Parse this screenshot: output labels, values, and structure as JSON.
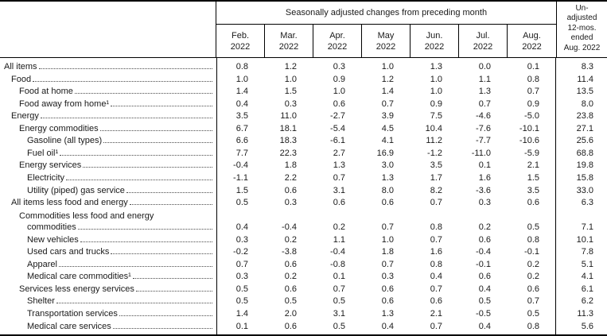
{
  "table": {
    "header": {
      "spanner": "Seasonally adjusted changes from preceding month",
      "months": [
        {
          "month": "Feb.",
          "year": "2022"
        },
        {
          "month": "Mar.",
          "year": "2022"
        },
        {
          "month": "Apr.",
          "year": "2022"
        },
        {
          "month": "May",
          "year": "2022"
        },
        {
          "month": "Jun.",
          "year": "2022"
        },
        {
          "month": "Jul.",
          "year": "2022"
        },
        {
          "month": "Aug.",
          "year": "2022"
        }
      ],
      "unadjusted_lines": [
        "Un-",
        "adjusted",
        "12-mos.",
        "ended",
        "Aug. 2022"
      ]
    },
    "rows": [
      {
        "label": "All items",
        "indent": 0,
        "values": [
          "0.8",
          "1.2",
          "0.3",
          "1.0",
          "1.3",
          "0.0",
          "0.1",
          "8.3"
        ]
      },
      {
        "label": "Food",
        "indent": 1,
        "values": [
          "1.0",
          "1.0",
          "0.9",
          "1.2",
          "1.0",
          "1.1",
          "0.8",
          "11.4"
        ]
      },
      {
        "label": "Food at home",
        "indent": 2,
        "values": [
          "1.4",
          "1.5",
          "1.0",
          "1.4",
          "1.0",
          "1.3",
          "0.7",
          "13.5"
        ]
      },
      {
        "label": "Food away from home¹",
        "indent": 2,
        "values": [
          "0.4",
          "0.3",
          "0.6",
          "0.7",
          "0.9",
          "0.7",
          "0.9",
          "8.0"
        ]
      },
      {
        "label": "Energy",
        "indent": 1,
        "values": [
          "3.5",
          "11.0",
          "-2.7",
          "3.9",
          "7.5",
          "-4.6",
          "-5.0",
          "23.8"
        ]
      },
      {
        "label": "Energy commodities",
        "indent": 2,
        "values": [
          "6.7",
          "18.1",
          "-5.4",
          "4.5",
          "10.4",
          "-7.6",
          "-10.1",
          "27.1"
        ]
      },
      {
        "label": "Gasoline (all types)",
        "indent": 3,
        "values": [
          "6.6",
          "18.3",
          "-6.1",
          "4.1",
          "11.2",
          "-7.7",
          "-10.6",
          "25.6"
        ]
      },
      {
        "label": "Fuel oil¹",
        "indent": 3,
        "values": [
          "7.7",
          "22.3",
          "2.7",
          "16.9",
          "-1.2",
          "-11.0",
          "-5.9",
          "68.8"
        ]
      },
      {
        "label": "Energy services",
        "indent": 2,
        "values": [
          "-0.4",
          "1.8",
          "1.3",
          "3.0",
          "3.5",
          "0.1",
          "2.1",
          "19.8"
        ]
      },
      {
        "label": "Electricity",
        "indent": 3,
        "values": [
          "-1.1",
          "2.2",
          "0.7",
          "1.3",
          "1.7",
          "1.6",
          "1.5",
          "15.8"
        ]
      },
      {
        "label": "Utility (piped) gas service",
        "indent": 3,
        "values": [
          "1.5",
          "0.6",
          "3.1",
          "8.0",
          "8.2",
          "-3.6",
          "3.5",
          "33.0"
        ]
      },
      {
        "label": "All items less food and energy",
        "indent": 1,
        "values": [
          "0.5",
          "0.3",
          "0.6",
          "0.6",
          "0.7",
          "0.3",
          "0.6",
          "6.3"
        ]
      },
      {
        "label": "Commodities less food and energy",
        "label2": "commodities",
        "indent": 2,
        "values": [
          "0.4",
          "-0.4",
          "0.2",
          "0.7",
          "0.8",
          "0.2",
          "0.5",
          "7.1"
        ]
      },
      {
        "label": "New vehicles",
        "indent": 3,
        "values": [
          "0.3",
          "0.2",
          "1.1",
          "1.0",
          "0.7",
          "0.6",
          "0.8",
          "10.1"
        ]
      },
      {
        "label": "Used cars and trucks",
        "indent": 3,
        "values": [
          "-0.2",
          "-3.8",
          "-0.4",
          "1.8",
          "1.6",
          "-0.4",
          "-0.1",
          "7.8"
        ]
      },
      {
        "label": "Apparel",
        "indent": 3,
        "values": [
          "0.7",
          "0.6",
          "-0.8",
          "0.7",
          "0.8",
          "-0.1",
          "0.2",
          "5.1"
        ]
      },
      {
        "label": "Medical care commodities¹",
        "indent": 3,
        "values": [
          "0.3",
          "0.2",
          "0.1",
          "0.3",
          "0.4",
          "0.6",
          "0.2",
          "4.1"
        ]
      },
      {
        "label": "Services less energy services",
        "indent": 2,
        "values": [
          "0.5",
          "0.6",
          "0.7",
          "0.6",
          "0.7",
          "0.4",
          "0.6",
          "6.1"
        ]
      },
      {
        "label": "Shelter",
        "indent": 3,
        "values": [
          "0.5",
          "0.5",
          "0.5",
          "0.6",
          "0.6",
          "0.5",
          "0.7",
          "6.2"
        ]
      },
      {
        "label": "Transportation services",
        "indent": 3,
        "values": [
          "1.4",
          "2.0",
          "3.1",
          "1.3",
          "2.1",
          "-0.5",
          "0.5",
          "11.3"
        ]
      },
      {
        "label": "Medical care services",
        "indent": 3,
        "values": [
          "0.1",
          "0.6",
          "0.5",
          "0.4",
          "0.7",
          "0.4",
          "0.8",
          "5.6"
        ]
      }
    ]
  }
}
